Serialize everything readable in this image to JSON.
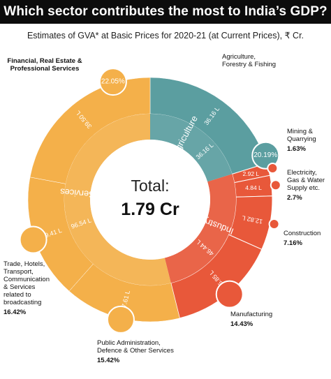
{
  "header": {
    "title": "Which sector contributes the most to India’s GDP?",
    "subtitle": "Estimates of GVA* at Basic Prices for 2020-21 (at Current Prices), ₹ Cr."
  },
  "center": {
    "label": "Total:",
    "value": "1.79 Cr"
  },
  "colors": {
    "services": "#F4B04A",
    "agriculture": "#5B9EA0",
    "industry": "#E8583A",
    "background": "#ffffff",
    "title_bg": "#0c0c0c"
  },
  "chart_data": {
    "type": "pie",
    "title": "Which sector contributes the most to India’s GDP?",
    "subtitle": "Estimates of GVA* at Basic Prices for 2020-21 (at Current Prices), ₹ Cr.",
    "total_label": "Total:",
    "total_value": "1.79 Cr",
    "inner_ring": [
      {
        "sector": "Agriculture",
        "value_label": "36.16 L",
        "value": 36.16,
        "color": "#5B9EA0"
      },
      {
        "sector": "Industry",
        "value_label": "46.44 L",
        "value": 46.44,
        "color": "#E8583A"
      },
      {
        "sector": "Services",
        "value_label": "96.54 L",
        "value": 96.54,
        "color": "#F4B04A"
      }
    ],
    "outer_ring": [
      {
        "name": "Agriculture, Forestry & Fishing",
        "value_label": "36.16 L",
        "value": 36.16,
        "share_label": "20.19%",
        "share": 20.19,
        "sector": "Agriculture"
      },
      {
        "name": "Mining & Quarrying",
        "value_label": "2.92 L",
        "value": 2.92,
        "share_label": "1.63%",
        "share": 1.63,
        "sector": "Industry"
      },
      {
        "name": "Electricity, Gas & Water Supply etc.",
        "value_label": "4.84 L",
        "value": 4.84,
        "share_label": "2.7%",
        "share": 2.7,
        "sector": "Industry"
      },
      {
        "name": "Construction",
        "value_label": "12.82 L",
        "value": 12.82,
        "share_label": "7.16%",
        "share": 7.16,
        "sector": "Industry"
      },
      {
        "name": "Manufacturing",
        "value_label": "25.85 L",
        "value": 25.85,
        "share_label": "14.43%",
        "share": 14.43,
        "sector": "Industry"
      },
      {
        "name": "Public Administration, Defence & Other Services",
        "value_label": "27.61 L",
        "value": 27.61,
        "share_label": "15.42%",
        "share": 15.42,
        "sector": "Services"
      },
      {
        "name": "Trade, Hotels, Transport, Communication & Services related to broadcasting",
        "value_label": "29.41 L",
        "value": 29.41,
        "share_label": "16.42%",
        "share": 16.42,
        "sector": "Services"
      },
      {
        "name": "Financial, Real Estate & Professional Services",
        "value_label": "39.50 L",
        "value": 39.5,
        "share_label": "22.05%",
        "share": 22.05,
        "sector": "Services"
      }
    ]
  },
  "callouts": {
    "financial_l1": "Financial, Real Estate &",
    "financial_l2": "Professional Services",
    "agri_l1": "Agriculture,",
    "agri_l2": "Forestry & Fishing",
    "mining_l1": "Mining &",
    "mining_l2": "Quarrying",
    "mining_pct": "1.63%",
    "elec_l1": "Electricity,",
    "elec_l2": "Gas & Water",
    "elec_l3": "Supply etc.",
    "elec_pct": "2.7%",
    "constr_l1": "Construction",
    "constr_pct": "7.16%",
    "manuf_l1": "Manufacturing",
    "manuf_pct": "14.43%",
    "public_l1": "Public Administration,",
    "public_l2": "Defence & Other Services",
    "public_pct": "15.42%",
    "trade_l1": "Trade, Hotels,",
    "trade_l2": "Transport,",
    "trade_l3": "Communication",
    "trade_l4": "& Services",
    "trade_l5": "related to",
    "trade_l6": "broadcasting",
    "trade_pct": "16.42%"
  }
}
